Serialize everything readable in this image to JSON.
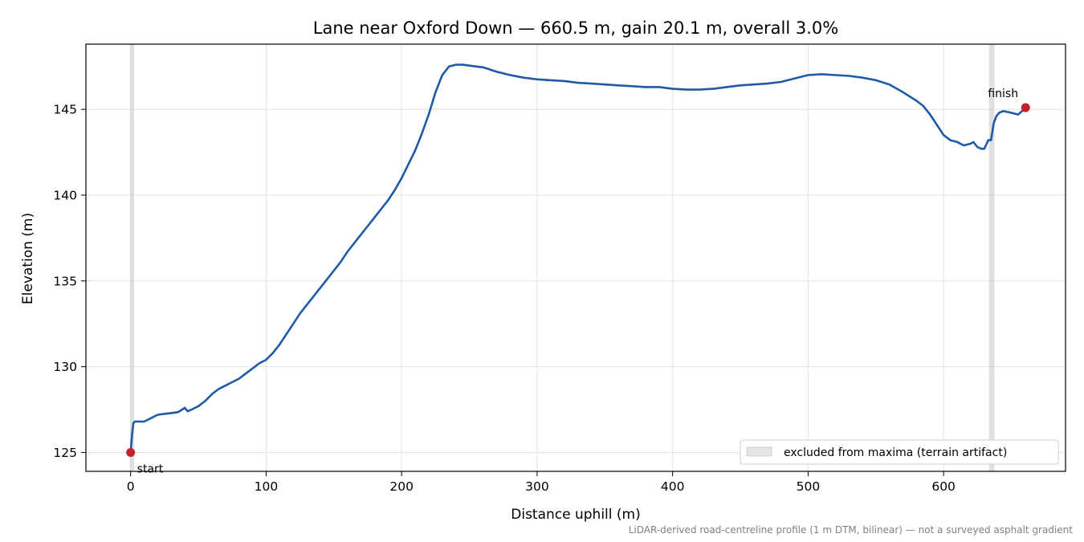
{
  "chart_data": {
    "type": "line",
    "title": "Lane near Oxford Down — 660.5 m, gain 20.1 m, overall 3.0%",
    "xlabel": "Distance uphill (m)",
    "ylabel": "Elevation (m)",
    "xlim": [
      -33,
      690
    ],
    "ylim": [
      123.9,
      148.8
    ],
    "xticks": [
      0,
      100,
      200,
      300,
      400,
      500,
      600
    ],
    "yticks": [
      125,
      130,
      135,
      140,
      145
    ],
    "grid": true,
    "legend_position": "lower-right",
    "colors": {
      "line": "#1f5aa6",
      "marker": "#c8202a",
      "band": "#cccccc",
      "grid": "#e3e3e3"
    },
    "series": [
      {
        "name": "",
        "x": [
          0,
          1,
          2,
          3,
          5,
          8,
          10,
          15,
          20,
          25,
          30,
          35,
          38,
          40,
          42,
          45,
          50,
          55,
          60,
          65,
          70,
          75,
          80,
          85,
          90,
          95,
          100,
          105,
          110,
          115,
          120,
          125,
          130,
          135,
          140,
          145,
          150,
          155,
          160,
          165,
          170,
          175,
          180,
          185,
          190,
          195,
          200,
          205,
          210,
          215,
          220,
          225,
          230,
          235,
          240,
          245,
          250,
          255,
          260,
          270,
          280,
          290,
          300,
          310,
          320,
          330,
          340,
          350,
          360,
          370,
          380,
          390,
          400,
          410,
          420,
          430,
          440,
          450,
          460,
          470,
          480,
          490,
          495,
          500,
          510,
          520,
          530,
          540,
          550,
          560,
          570,
          580,
          585,
          590,
          595,
          600,
          605,
          610,
          615,
          620,
          622,
          625,
          628,
          630,
          633,
          635,
          637,
          639,
          641,
          644,
          647,
          650,
          655,
          658,
          660.5
        ],
        "values": [
          125.0,
          126.0,
          126.7,
          126.8,
          126.8,
          126.8,
          126.8,
          127.0,
          127.2,
          127.25,
          127.3,
          127.35,
          127.5,
          127.6,
          127.4,
          127.5,
          127.7,
          128.0,
          128.4,
          128.7,
          128.9,
          129.1,
          129.3,
          129.6,
          129.9,
          130.2,
          130.4,
          130.8,
          131.3,
          131.9,
          132.5,
          133.1,
          133.6,
          134.1,
          134.6,
          135.1,
          135.6,
          136.1,
          136.7,
          137.2,
          137.7,
          138.2,
          138.7,
          139.2,
          139.7,
          140.3,
          141.0,
          141.8,
          142.6,
          143.6,
          144.7,
          146.0,
          147.0,
          147.5,
          147.6,
          147.6,
          147.55,
          147.5,
          147.45,
          147.2,
          147.0,
          146.85,
          146.75,
          146.7,
          146.65,
          146.55,
          146.5,
          146.45,
          146.4,
          146.35,
          146.3,
          146.3,
          146.2,
          146.15,
          146.15,
          146.2,
          146.3,
          146.4,
          146.45,
          146.5,
          146.6,
          146.8,
          146.9,
          147.0,
          147.05,
          147.0,
          146.95,
          146.85,
          146.7,
          146.45,
          146.0,
          145.5,
          145.2,
          144.7,
          144.1,
          143.5,
          143.2,
          143.1,
          142.9,
          143.0,
          143.1,
          142.8,
          142.7,
          142.7,
          143.2,
          143.2,
          144.2,
          144.6,
          144.8,
          144.9,
          144.85,
          144.8,
          144.7,
          144.9,
          145.1
        ]
      }
    ],
    "excluded_bands": [
      [
        -0.5,
        2.5
      ],
      [
        633.5,
        637.5
      ]
    ],
    "annotations": [
      {
        "label": "start",
        "x": 0,
        "y": 125.0
      },
      {
        "label": "finish",
        "x": 660.5,
        "y": 145.1
      }
    ],
    "legend": {
      "label": "excluded from maxima (terrain artifact)"
    },
    "footnote": "LiDAR-derived road-centreline profile (1 m DTM, bilinear) — not a surveyed asphalt gradient"
  }
}
